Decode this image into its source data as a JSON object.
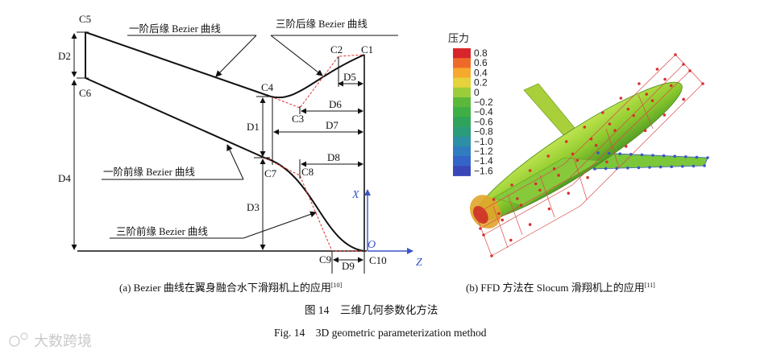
{
  "figure_a": {
    "points": [
      "C1",
      "C2",
      "C3",
      "C4",
      "C5",
      "C6",
      "C7",
      "C8",
      "C9",
      "C10"
    ],
    "dims": [
      "D1",
      "D2",
      "D3",
      "D4",
      "D5",
      "D6",
      "D7",
      "D8",
      "D9"
    ],
    "annotations": {
      "first_order_trailing": "一阶后缘 Bezier 曲线",
      "third_order_trailing": "三阶后缘 Bezier 曲线",
      "first_order_leading": "一阶前缘 Bezier 曲线",
      "third_order_leading": "三阶前缘 Bezier 曲线"
    },
    "axes": {
      "x": "X",
      "z": "Z",
      "origin": "O"
    },
    "caption": "(a) Bezier 曲线在翼身融合水下滑翔机上的应用",
    "ref": "[10]"
  },
  "figure_b": {
    "legend_title": "压力",
    "legend_ticks": [
      "0.8",
      "0.6",
      "0.4",
      "0.2",
      "0",
      "−0.2",
      "−0.4",
      "−0.6",
      "−0.8",
      "−1.0",
      "−1.2",
      "−1.4",
      "−1.6"
    ],
    "legend_colors": [
      "#d7262b",
      "#ef6a2a",
      "#f6a92d",
      "#e6d23a",
      "#9ccc3a",
      "#5cb83a",
      "#3fae44",
      "#2fa35a",
      "#2b9c7a",
      "#2c8fa5",
      "#2f7cc0",
      "#3464c7",
      "#3947b9"
    ],
    "caption": "(b) FFD 方法在 Slocum 滑翔机上的应用",
    "ref": "[11]"
  },
  "figure_title_cn": "图 14　三维几何参数化方法",
  "figure_title_en": "Fig. 14　3D geometric parameterization method",
  "watermark": "大数跨境"
}
